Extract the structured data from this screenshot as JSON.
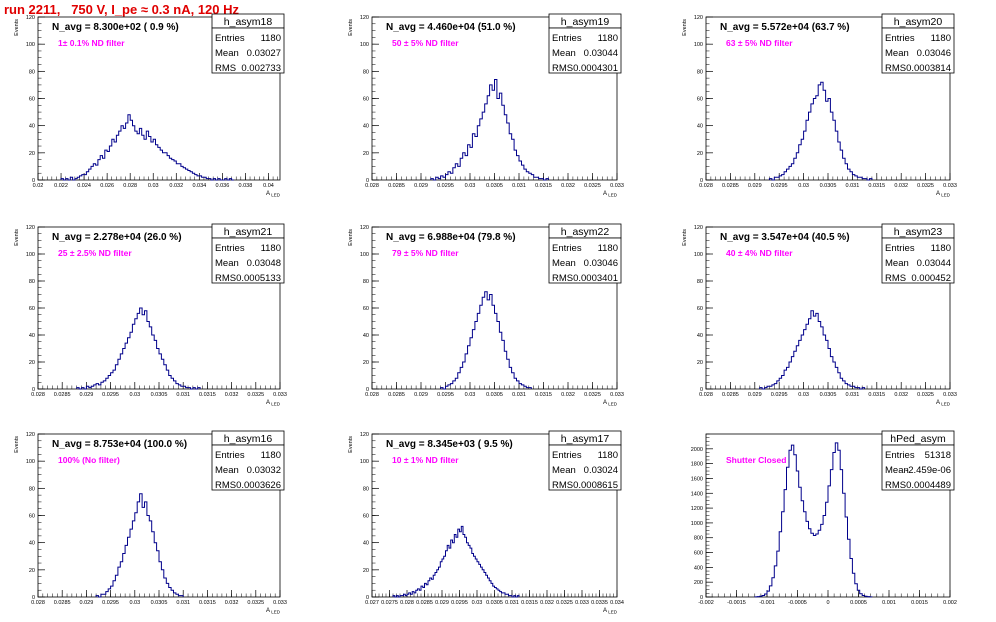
{
  "run_title": "run 2211,   750 V, I_pe ≈ 0.3 nA, 120 Hz",
  "colors": {
    "hist": "#00008b",
    "annotation": "#ff00ff",
    "title": "#e00000"
  },
  "chart_data": [
    {
      "type": "histogram",
      "name": "h_asym18",
      "navg_label": "N_avg = 8.300e+02 ( 0.9 %)",
      "filter_label": "1± 0.1% ND filter",
      "stats": {
        "entries": "1180",
        "mean": "0.03027",
        "rms": "0.002733"
      },
      "ylabel": "Events",
      "xlabel": "A_LED",
      "xlim": [
        0.02,
        0.041
      ],
      "ylim": [
        0,
        120
      ],
      "xticks": [
        0.02,
        0.022,
        0.024,
        0.026,
        0.028,
        0.03,
        0.032,
        0.034,
        0.036,
        0.038,
        0.04
      ],
      "xticklabels": [
        "0.02",
        "0.022",
        "0.024",
        "0.026",
        "0.028",
        "0.03",
        "0.032",
        "0.034",
        "0.036",
        "0.038",
        "0.04"
      ],
      "yticks": [
        0,
        20,
        40,
        60,
        80,
        100,
        120
      ],
      "bin_lo": 0.022,
      "bin_width": 0.0002,
      "counts": [
        1,
        0,
        1,
        0,
        2,
        0,
        1,
        2,
        3,
        4,
        4,
        6,
        8,
        10,
        12,
        11,
        15,
        18,
        16,
        22,
        21,
        25,
        30,
        28,
        33,
        36,
        40,
        38,
        42,
        48,
        44,
        40,
        36,
        34,
        38,
        33,
        30,
        36,
        32,
        28,
        30,
        26,
        24,
        22,
        20,
        20,
        18,
        16,
        15,
        14,
        12,
        12,
        10,
        9,
        8,
        7,
        6,
        5,
        4,
        3,
        3,
        2,
        2,
        1,
        1,
        0,
        1,
        0,
        1,
        0,
        0,
        1,
        0,
        1,
        0
      ]
    },
    {
      "type": "histogram",
      "name": "h_asym19",
      "navg_label": "N_avg = 4.460e+04 (51.0 %)",
      "filter_label": "50 ± 5% ND filter",
      "stats": {
        "entries": "1180",
        "mean": "0.03044",
        "rms": "0.0004301"
      },
      "ylabel": "Events",
      "xlabel": "A_LED",
      "xlim": [
        0.028,
        0.033
      ],
      "ylim": [
        0,
        120
      ],
      "xticks": [
        0.028,
        0.0285,
        0.029,
        0.0295,
        0.03,
        0.0305,
        0.031,
        0.0315,
        0.032,
        0.0325,
        0.033
      ],
      "xticklabels": [
        "0.028",
        "0.0285",
        "0.029",
        "0.0295",
        "0.03",
        "0.0305",
        "0.031",
        "0.0315",
        "0.032",
        "0.0325",
        "0.033"
      ],
      "yticks": [
        0,
        20,
        40,
        60,
        80,
        100,
        120
      ],
      "bin_lo": 0.0292,
      "bin_width": 5e-05,
      "counts": [
        1,
        0,
        2,
        1,
        3,
        2,
        4,
        6,
        5,
        9,
        12,
        10,
        16,
        20,
        18,
        26,
        24,
        34,
        32,
        40,
        45,
        50,
        56,
        62,
        70,
        66,
        74,
        60,
        64,
        55,
        48,
        42,
        34,
        30,
        22,
        18,
        14,
        11,
        8,
        6,
        5,
        4,
        2,
        2,
        1,
        1,
        0,
        1
      ]
    },
    {
      "type": "histogram",
      "name": "h_asym20",
      "navg_label": "N_avg = 5.572e+04 (63.7 %)",
      "filter_label": "63 ± 5% ND filter",
      "stats": {
        "entries": "1180",
        "mean": "0.03046",
        "rms": "0.0003814"
      },
      "ylabel": "Events",
      "xlabel": "A_LED",
      "xlim": [
        0.028,
        0.033
      ],
      "ylim": [
        0,
        120
      ],
      "xticks": [
        0.028,
        0.0285,
        0.029,
        0.0295,
        0.03,
        0.0305,
        0.031,
        0.0315,
        0.032,
        0.0325,
        0.033
      ],
      "xticklabels": [
        "0.028",
        "0.0285",
        "0.029",
        "0.0295",
        "0.03",
        "0.0305",
        "0.031",
        "0.0315",
        "0.032",
        "0.0325",
        "0.033"
      ],
      "yticks": [
        0,
        20,
        40,
        60,
        80,
        100,
        120
      ],
      "bin_lo": 0.0293,
      "bin_width": 5e-05,
      "counts": [
        1,
        0,
        2,
        2,
        3,
        4,
        6,
        8,
        10,
        12,
        16,
        20,
        26,
        30,
        36,
        44,
        50,
        56,
        60,
        62,
        70,
        72,
        66,
        58,
        60,
        50,
        44,
        36,
        28,
        22,
        16,
        12,
        8,
        6,
        4,
        3,
        2,
        2,
        1,
        1,
        0,
        1
      ]
    },
    {
      "type": "histogram",
      "name": "h_asym21",
      "navg_label": "N_avg = 2.278e+04 (26.0 %)",
      "filter_label": "25 ± 2.5% ND filter",
      "stats": {
        "entries": "1180",
        "mean": "0.03048",
        "rms": "0.0005133"
      },
      "ylabel": "Events",
      "xlabel": "A_LED",
      "xlim": [
        0.028,
        0.033
      ],
      "ylim": [
        0,
        120
      ],
      "xticks": [
        0.028,
        0.0285,
        0.029,
        0.0295,
        0.03,
        0.0305,
        0.031,
        0.0315,
        0.032,
        0.0325,
        0.033
      ],
      "xticklabels": [
        "0.028",
        "0.0285",
        "0.029",
        "0.0295",
        "0.03",
        "0.0305",
        "0.031",
        "0.0315",
        "0.032",
        "0.0325",
        "0.033"
      ],
      "yticks": [
        0,
        20,
        40,
        60,
        80,
        100,
        120
      ],
      "bin_lo": 0.0288,
      "bin_width": 5e-05,
      "counts": [
        1,
        0,
        1,
        0,
        2,
        1,
        2,
        3,
        4,
        3,
        5,
        6,
        8,
        10,
        12,
        14,
        18,
        22,
        26,
        30,
        34,
        38,
        42,
        48,
        52,
        56,
        60,
        55,
        58,
        50,
        46,
        40,
        36,
        30,
        26,
        22,
        18,
        14,
        10,
        8,
        6,
        4,
        3,
        2,
        2,
        1,
        1,
        0,
        1,
        0,
        1
      ]
    },
    {
      "type": "histogram",
      "name": "h_asym22",
      "navg_label": "N_avg = 6.988e+04 (79.8 %)",
      "filter_label": "79 ± 5% ND filter",
      "stats": {
        "entries": "1180",
        "mean": "0.03046",
        "rms": "0.0003401"
      },
      "ylabel": "Events",
      "xlabel": "A_LED",
      "xlim": [
        0.028,
        0.033
      ],
      "ylim": [
        0,
        120
      ],
      "xticks": [
        0.028,
        0.0285,
        0.029,
        0.0295,
        0.03,
        0.0305,
        0.031,
        0.0315,
        0.032,
        0.0325,
        0.033
      ],
      "xticklabels": [
        "0.028",
        "0.0285",
        "0.029",
        "0.0295",
        "0.03",
        "0.0305",
        "0.031",
        "0.0315",
        "0.032",
        "0.0325",
        "0.033"
      ],
      "yticks": [
        0,
        20,
        40,
        60,
        80,
        100,
        120
      ],
      "bin_lo": 0.0294,
      "bin_width": 5e-05,
      "counts": [
        1,
        0,
        2,
        3,
        4,
        6,
        8,
        12,
        16,
        20,
        26,
        32,
        38,
        44,
        50,
        56,
        62,
        68,
        72,
        66,
        70,
        62,
        56,
        50,
        42,
        36,
        28,
        22,
        16,
        12,
        8,
        6,
        4,
        3,
        2,
        1,
        1
      ]
    },
    {
      "type": "histogram",
      "name": "h_asym23",
      "navg_label": "N_avg = 3.547e+04 (40.5 %)",
      "filter_label": "40 ± 4% ND filter",
      "stats": {
        "entries": "1180",
        "mean": "0.03044",
        "rms": "0.000452"
      },
      "ylabel": "Events",
      "xlabel": "A_LED",
      "xlim": [
        0.028,
        0.033
      ],
      "ylim": [
        0,
        120
      ],
      "xticks": [
        0.028,
        0.0285,
        0.029,
        0.0295,
        0.03,
        0.0305,
        0.031,
        0.0315,
        0.032,
        0.0325,
        0.033
      ],
      "xticklabels": [
        "0.028",
        "0.0285",
        "0.029",
        "0.0295",
        "0.03",
        "0.0305",
        "0.031",
        "0.0315",
        "0.032",
        "0.0325",
        "0.033"
      ],
      "yticks": [
        0,
        20,
        40,
        60,
        80,
        100,
        120
      ],
      "bin_lo": 0.0291,
      "bin_width": 5e-05,
      "counts": [
        1,
        0,
        1,
        2,
        2,
        3,
        4,
        6,
        8,
        10,
        14,
        16,
        20,
        24,
        28,
        32,
        36,
        40,
        44,
        48,
        52,
        58,
        54,
        56,
        50,
        46,
        40,
        36,
        30,
        24,
        20,
        16,
        12,
        8,
        6,
        4,
        3,
        2,
        2,
        1,
        1,
        0,
        1
      ]
    },
    {
      "type": "histogram",
      "name": "h_asym16",
      "navg_label": "N_avg = 8.753e+04 (100.0 %)",
      "filter_label": "100% (No filter)",
      "stats": {
        "entries": "1180",
        "mean": "0.03032",
        "rms": "0.0003626"
      },
      "ylabel": "Events",
      "xlabel": "A_LED",
      "xlim": [
        0.028,
        0.033
      ],
      "ylim": [
        0,
        120
      ],
      "xticks": [
        0.028,
        0.0285,
        0.029,
        0.0295,
        0.03,
        0.0305,
        0.031,
        0.0315,
        0.032,
        0.0325,
        0.033
      ],
      "xticklabels": [
        "0.028",
        "0.0285",
        "0.029",
        "0.0295",
        "0.03",
        "0.0305",
        "0.031",
        "0.0315",
        "0.032",
        "0.0325",
        "0.033"
      ],
      "yticks": [
        0,
        20,
        40,
        60,
        80,
        100,
        120
      ],
      "bin_lo": 0.0292,
      "bin_width": 5e-05,
      "counts": [
        1,
        0,
        2,
        2,
        4,
        6,
        8,
        12,
        16,
        22,
        26,
        32,
        38,
        44,
        50,
        56,
        62,
        70,
        76,
        66,
        70,
        60,
        56,
        48,
        40,
        34,
        26,
        20,
        14,
        10,
        7,
        5,
        3,
        2,
        1,
        1
      ]
    },
    {
      "type": "histogram",
      "name": "h_asym17",
      "navg_label": "N_avg = 8.345e+03 ( 9.5 %)",
      "filter_label": "10 ± 1% ND filter",
      "stats": {
        "entries": "1180",
        "mean": "0.03024",
        "rms": "0.0008615"
      },
      "ylabel": "Events",
      "xlabel": "A_LED",
      "xlim": [
        0.027,
        0.034
      ],
      "ylim": [
        0,
        120
      ],
      "xticks": [
        0.027,
        0.0275,
        0.028,
        0.0285,
        0.029,
        0.0295,
        0.03,
        0.0305,
        0.031,
        0.0315,
        0.032,
        0.0325,
        0.033,
        0.0335,
        0.034
      ],
      "xticklabels": [
        "0.027",
        "0.0275",
        "0.028",
        "0.0285",
        "0.029",
        "0.0295",
        "0.03",
        "0.0305",
        "0.031",
        "0.0315",
        "0.032",
        "0.0325",
        "0.033",
        "0.0335",
        "0.034"
      ],
      "yticks": [
        0,
        20,
        40,
        60,
        80,
        100,
        120
      ],
      "bin_lo": 0.0276,
      "bin_width": 5e-05,
      "counts": [
        1,
        0,
        1,
        0,
        1,
        1,
        2,
        1,
        2,
        3,
        2,
        4,
        3,
        5,
        6,
        5,
        8,
        7,
        10,
        9,
        12,
        14,
        13,
        16,
        18,
        20,
        22,
        26,
        28,
        30,
        34,
        38,
        36,
        42,
        40,
        46,
        44,
        50,
        48,
        52,
        46,
        44,
        40,
        38,
        36,
        32,
        30,
        28,
        26,
        24,
        22,
        20,
        18,
        16,
        14,
        12,
        10,
        8,
        7,
        6,
        5,
        4,
        3,
        3,
        2,
        2,
        1,
        1,
        0,
        1,
        0,
        1
      ]
    },
    {
      "type": "histogram",
      "name": "hPed_asym",
      "navg_label": "",
      "filter_label": "Shutter Closed",
      "stats": {
        "entries": "51318",
        "mean": "-2.459e-06",
        "rms": "0.0004489"
      },
      "ylabel": "",
      "xlabel": "",
      "xlim": [
        -0.002,
        0.002
      ],
      "ylim": [
        0,
        2200
      ],
      "xticks": [
        -0.002,
        -0.0015,
        -0.001,
        -0.0005,
        0,
        0.0005,
        0.001,
        0.0015,
        0.002
      ],
      "xticklabels": [
        "-0.002",
        "-0.0015",
        "-0.001",
        "-0.0005",
        "0",
        "0.0005",
        "0.001",
        "0.0015",
        "0.002"
      ],
      "yticks": [
        0,
        200,
        400,
        600,
        800,
        1000,
        1200,
        1400,
        1600,
        1800,
        2000
      ],
      "bin_lo": -0.0012,
      "bin_width": 4e-05,
      "counts": [
        2,
        5,
        10,
        20,
        40,
        80,
        150,
        260,
        420,
        620,
        880,
        1150,
        1450,
        1750,
        1980,
        2050,
        1920,
        1700,
        1480,
        1300,
        1150,
        1020,
        920,
        860,
        830,
        850,
        900,
        980,
        1100,
        1280,
        1500,
        1720,
        1950,
        2080,
        1980,
        1720,
        1400,
        1080,
        780,
        520,
        320,
        180,
        90,
        45,
        20,
        10,
        5,
        2
      ]
    }
  ]
}
